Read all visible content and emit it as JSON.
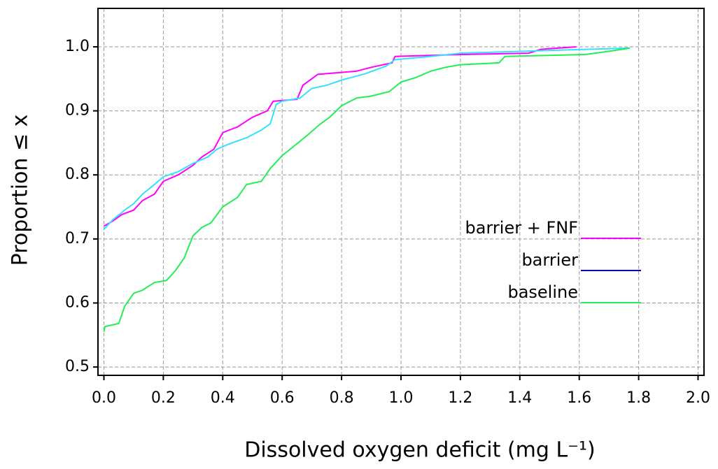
{
  "chart_data": {
    "type": "line",
    "xlabel": "Dissolved oxygen deficit (mg L⁻¹)",
    "ylabel": "Proportion ≤ x",
    "xlim": [
      -0.02,
      2.02
    ],
    "ylim": [
      0.487,
      1.06
    ],
    "xticks": [
      {
        "value": 0,
        "label": "0.0"
      },
      {
        "value": 0.2,
        "label": "0.2"
      },
      {
        "value": 0.4,
        "label": "0.4"
      },
      {
        "value": 0.6,
        "label": "0.6"
      },
      {
        "value": 0.8,
        "label": "0.8"
      },
      {
        "value": 1,
        "label": "1.0"
      },
      {
        "value": 1.2,
        "label": "1.2"
      },
      {
        "value": 1.4,
        "label": "1.4"
      },
      {
        "value": 1.6,
        "label": "1.6"
      },
      {
        "value": 1.8,
        "label": "1.8"
      },
      {
        "value": 2,
        "label": "2.0"
      }
    ],
    "yticks": [
      {
        "value": 0.5,
        "label": "0.5"
      },
      {
        "value": 0.6,
        "label": "0.6"
      },
      {
        "value": 0.7,
        "label": "0.7"
      },
      {
        "value": 0.8,
        "label": "0.8"
      },
      {
        "value": 0.9,
        "label": "0.9"
      },
      {
        "value": 1,
        "label": "1.0"
      }
    ],
    "grid": true,
    "legend": "center right",
    "series": [
      {
        "name": "barrier + FNF",
        "color": "#ff00ff",
        "legend_color": "#ff00ff",
        "x": [
          0,
          0.03,
          0.06,
          0.1,
          0.13,
          0.17,
          0.2,
          0.25,
          0.3,
          0.33,
          0.37,
          0.4,
          0.45,
          0.5,
          0.55,
          0.57,
          0.65,
          0.67,
          0.72,
          0.85,
          0.9,
          0.97,
          0.98,
          1.2,
          1.43,
          1.47,
          1.59
        ],
        "values": [
          0.72,
          0.728,
          0.738,
          0.745,
          0.76,
          0.77,
          0.79,
          0.8,
          0.815,
          0.828,
          0.84,
          0.866,
          0.875,
          0.89,
          0.9,
          0.915,
          0.918,
          0.94,
          0.957,
          0.962,
          0.968,
          0.975,
          0.985,
          0.988,
          0.99,
          0.996,
          1.0
        ]
      },
      {
        "name": "barrier",
        "color": "#33e0ff",
        "legend_color": "#0000cc",
        "x": [
          0,
          0.03,
          0.07,
          0.1,
          0.13,
          0.17,
          0.2,
          0.25,
          0.3,
          0.35,
          0.38,
          0.42,
          0.48,
          0.53,
          0.56,
          0.58,
          0.6,
          0.66,
          0.7,
          0.75,
          0.8,
          0.88,
          0.95,
          0.98,
          1.1,
          1.2,
          1.55,
          1.77
        ],
        "values": [
          0.715,
          0.73,
          0.745,
          0.755,
          0.77,
          0.785,
          0.797,
          0.805,
          0.818,
          0.828,
          0.84,
          0.848,
          0.858,
          0.87,
          0.88,
          0.91,
          0.915,
          0.92,
          0.935,
          0.94,
          0.948,
          0.958,
          0.97,
          0.98,
          0.985,
          0.99,
          0.995,
          0.998
        ]
      },
      {
        "name": "baseline",
        "color": "#22ee55",
        "legend_color": "#22ee55",
        "x": [
          0,
          0.003,
          0.05,
          0.07,
          0.1,
          0.13,
          0.17,
          0.21,
          0.24,
          0.27,
          0.3,
          0.33,
          0.36,
          0.4,
          0.45,
          0.48,
          0.53,
          0.56,
          0.6,
          0.64,
          0.68,
          0.73,
          0.76,
          0.8,
          0.85,
          0.9,
          0.96,
          1.0,
          1.05,
          1.1,
          1.15,
          1.2,
          1.33,
          1.35,
          1.62,
          1.7,
          1.77
        ],
        "values": [
          0.555,
          0.563,
          0.568,
          0.595,
          0.615,
          0.62,
          0.632,
          0.635,
          0.65,
          0.67,
          0.705,
          0.718,
          0.725,
          0.75,
          0.765,
          0.785,
          0.79,
          0.81,
          0.83,
          0.845,
          0.86,
          0.88,
          0.89,
          0.908,
          0.92,
          0.923,
          0.93,
          0.945,
          0.952,
          0.962,
          0.968,
          0.972,
          0.975,
          0.985,
          0.988,
          0.993,
          0.998
        ]
      }
    ]
  }
}
